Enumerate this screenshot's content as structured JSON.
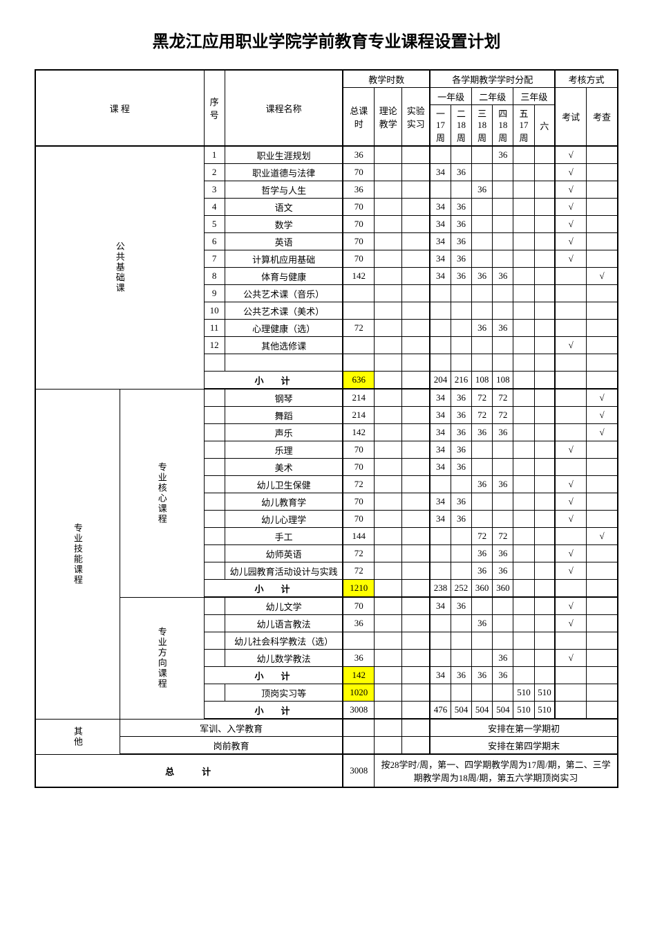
{
  "title": "黑龙江应用职业学院学前教育专业课程设置计划",
  "headers": {
    "course": "课 程",
    "seq": "序号",
    "courseName": "课程名称",
    "teachingHours": "教学时数",
    "semesterDist": "各学期教学学时分配",
    "assessment": "考核方式",
    "totalHours": "总课时",
    "theory": "理论教学",
    "practice": "实验实习",
    "year1": "一年级",
    "year2": "二年级",
    "year3": "三年级",
    "exam": "考试",
    "check": "考查",
    "sem1": "一\n17\n周",
    "sem2": "二\n18\n周",
    "sem3": "三\n18\n周",
    "sem4": "四\n18\n周",
    "sem5": "五\n17\n周",
    "sem6": "六"
  },
  "catA": "公共基础课",
  "catB": "专业技能课程",
  "catB1": "专业核心课程",
  "catB2": "专业方向课程",
  "catC": "其他",
  "subtotalLabel": "小计",
  "grandTotalLabel": "总计",
  "grandTotal": "3008",
  "note": "按28学时/周，第一、四学期教学周为17周/期，第二、三学期教学周为18周/期，第五六学期顶岗实习",
  "otherRows": {
    "r1": {
      "name": "军训、入学教育",
      "text": "安排在第一学期初"
    },
    "r2": {
      "name": "岗前教育",
      "text": "安排在第四学期末"
    }
  },
  "rowsA": [
    {
      "n": "1",
      "name": "职业生涯规划",
      "t": "36",
      "s1": "",
      "s2": "",
      "s3": "",
      "s4": "36",
      "s5": "",
      "s6": "",
      "exam": "√",
      "chk": ""
    },
    {
      "n": "2",
      "name": "职业道德与法律",
      "t": "70",
      "s1": "34",
      "s2": "36",
      "s3": "",
      "s4": "",
      "s5": "",
      "s6": "",
      "exam": "√",
      "chk": ""
    },
    {
      "n": "3",
      "name": "哲学与人生",
      "t": "36",
      "s1": "",
      "s2": "",
      "s3": "36",
      "s4": "",
      "s5": "",
      "s6": "",
      "exam": "√",
      "chk": ""
    },
    {
      "n": "4",
      "name": "语文",
      "t": "70",
      "s1": "34",
      "s2": "36",
      "s3": "",
      "s4": "",
      "s5": "",
      "s6": "",
      "exam": "√",
      "chk": ""
    },
    {
      "n": "5",
      "name": "数学",
      "t": "70",
      "s1": "34",
      "s2": "36",
      "s3": "",
      "s4": "",
      "s5": "",
      "s6": "",
      "exam": "√",
      "chk": ""
    },
    {
      "n": "6",
      "name": "英语",
      "t": "70",
      "s1": "34",
      "s2": "36",
      "s3": "",
      "s4": "",
      "s5": "",
      "s6": "",
      "exam": "√",
      "chk": ""
    },
    {
      "n": "7",
      "name": "计算机应用基础",
      "t": "70",
      "s1": "34",
      "s2": "36",
      "s3": "",
      "s4": "",
      "s5": "",
      "s6": "",
      "exam": "√",
      "chk": ""
    },
    {
      "n": "8",
      "name": "体育与健康",
      "t": "142",
      "s1": "34",
      "s2": "36",
      "s3": "36",
      "s4": "36",
      "s5": "",
      "s6": "",
      "exam": "",
      "chk": "√"
    },
    {
      "n": "9",
      "name": "公共艺术课（音乐）",
      "t": "",
      "s1": "",
      "s2": "",
      "s3": "",
      "s4": "",
      "s5": "",
      "s6": "",
      "exam": "",
      "chk": ""
    },
    {
      "n": "10",
      "name": "公共艺术课（美术）",
      "t": "",
      "s1": "",
      "s2": "",
      "s3": "",
      "s4": "",
      "s5": "",
      "s6": "",
      "exam": "",
      "chk": ""
    },
    {
      "n": "11",
      "name": "心理健康（选）",
      "t": "72",
      "s1": "",
      "s2": "",
      "s3": "36",
      "s4": "36",
      "s5": "",
      "s6": "",
      "exam": "",
      "chk": ""
    },
    {
      "n": "12",
      "name": "其他选修课",
      "t": "",
      "s1": "",
      "s2": "",
      "s3": "",
      "s4": "",
      "s5": "",
      "s6": "",
      "exam": "√",
      "chk": ""
    }
  ],
  "subA": {
    "t": "636",
    "s1": "204",
    "s2": "216",
    "s3": "108",
    "s4": "108",
    "s5": "",
    "s6": ""
  },
  "rowsB1": [
    {
      "name": "钢琴",
      "t": "214",
      "s1": "34",
      "s2": "36",
      "s3": "72",
      "s4": "72",
      "s5": "",
      "s6": "",
      "exam": "",
      "chk": "√"
    },
    {
      "name": "舞蹈",
      "t": "214",
      "s1": "34",
      "s2": "36",
      "s3": "72",
      "s4": "72",
      "s5": "",
      "s6": "",
      "exam": "",
      "chk": "√"
    },
    {
      "name": "声乐",
      "t": "142",
      "s1": "34",
      "s2": "36",
      "s3": "36",
      "s4": "36",
      "s5": "",
      "s6": "",
      "exam": "",
      "chk": "√"
    },
    {
      "name": "乐理",
      "t": "70",
      "s1": "34",
      "s2": "36",
      "s3": "",
      "s4": "",
      "s5": "",
      "s6": "",
      "exam": "√",
      "chk": ""
    },
    {
      "name": "美术",
      "t": "70",
      "s1": "34",
      "s2": "36",
      "s3": "",
      "s4": "",
      "s5": "",
      "s6": "",
      "exam": "",
      "chk": ""
    },
    {
      "name": "幼儿卫生保健",
      "t": "72",
      "s1": "",
      "s2": "",
      "s3": "36",
      "s4": "36",
      "s5": "",
      "s6": "",
      "exam": "√",
      "chk": ""
    },
    {
      "name": "幼儿教育学",
      "t": "70",
      "s1": "34",
      "s2": "36",
      "s3": "",
      "s4": "",
      "s5": "",
      "s6": "",
      "exam": "√",
      "chk": ""
    },
    {
      "name": "幼儿心理学",
      "t": "70",
      "s1": "34",
      "s2": "36",
      "s3": "",
      "s4": "",
      "s5": "",
      "s6": "",
      "exam": "√",
      "chk": ""
    },
    {
      "name": "手工",
      "t": "144",
      "s1": "",
      "s2": "",
      "s3": "72",
      "s4": "72",
      "s5": "",
      "s6": "",
      "exam": "",
      "chk": "√"
    },
    {
      "name": "幼师英语",
      "t": "72",
      "s1": "",
      "s2": "",
      "s3": "36",
      "s4": "36",
      "s5": "",
      "s6": "",
      "exam": "√",
      "chk": ""
    },
    {
      "name": "幼儿园教育活动设计与实践",
      "t": "72",
      "s1": "",
      "s2": "",
      "s3": "36",
      "s4": "36",
      "s5": "",
      "s6": "",
      "exam": "√",
      "chk": ""
    }
  ],
  "subB1": {
    "t": "1210",
    "s1": "238",
    "s2": "252",
    "s3": "360",
    "s4": "360",
    "s5": "",
    "s6": ""
  },
  "rowsB2": [
    {
      "name": "幼儿文学",
      "t": "70",
      "s1": "34",
      "s2": "36",
      "s3": "",
      "s4": "",
      "s5": "",
      "s6": "",
      "exam": "√",
      "chk": ""
    },
    {
      "name": "幼儿语言教法",
      "t": "36",
      "s1": "",
      "s2": "",
      "s3": "36",
      "s4": "",
      "s5": "",
      "s6": "",
      "exam": "√",
      "chk": ""
    },
    {
      "name": "幼儿社会科学教法（选）",
      "t": "",
      "s1": "",
      "s2": "",
      "s3": "",
      "s4": "",
      "s5": "",
      "s6": "",
      "exam": "",
      "chk": ""
    },
    {
      "name": "幼儿数学教法",
      "t": "36",
      "s1": "",
      "s2": "",
      "s3": "",
      "s4": "36",
      "s5": "",
      "s6": "",
      "exam": "√",
      "chk": ""
    }
  ],
  "subB2": {
    "t": "142",
    "s1": "34",
    "s2": "36",
    "s3": "36",
    "s4": "36",
    "s5": "",
    "s6": ""
  },
  "intern": {
    "name": "顶岗实习等",
    "t": "1020",
    "s1": "",
    "s2": "",
    "s3": "",
    "s4": "",
    "s5": "510",
    "s6": "510"
  },
  "subB": {
    "t": "3008",
    "s1": "476",
    "s2": "504",
    "s3": "504",
    "s4": "504",
    "s5": "510",
    "s6": "510"
  },
  "colors": {
    "highlight": "#ffff00",
    "border": "#000000",
    "bg": "#ffffff"
  }
}
